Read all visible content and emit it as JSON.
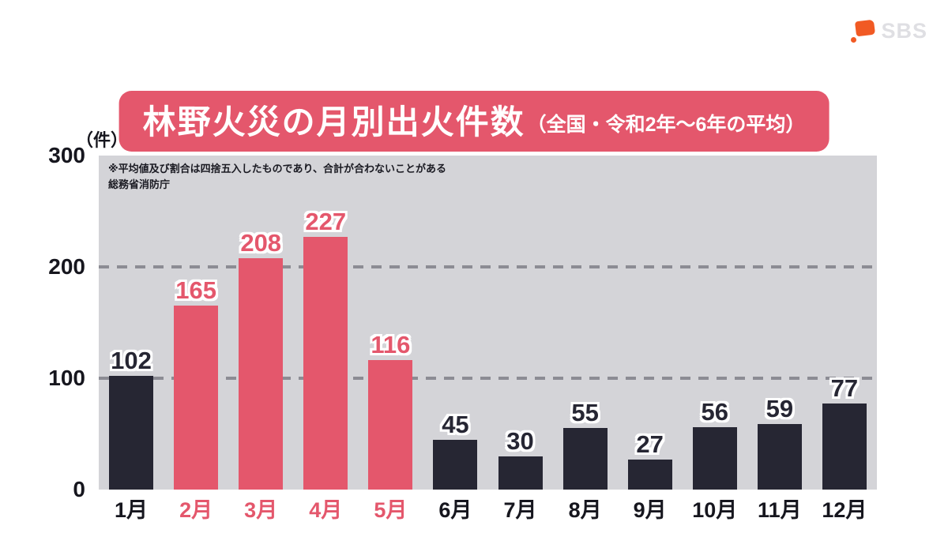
{
  "logo": {
    "text": "SBS"
  },
  "header": {
    "title": "林野火災の月別出火件数",
    "subtitle": "（全国・令和2年～6年の平均）"
  },
  "chart_data": {
    "type": "bar",
    "title": "林野火災の月別出火件数（全国・令和2年～6年の平均）",
    "unit_label": "（件）",
    "categories": [
      "1月",
      "2月",
      "3月",
      "4月",
      "5月",
      "6月",
      "7月",
      "8月",
      "9月",
      "10月",
      "11月",
      "12月"
    ],
    "values": [
      102,
      165,
      208,
      227,
      116,
      45,
      30,
      55,
      27,
      56,
      59,
      77
    ],
    "highlighted": [
      false,
      true,
      true,
      true,
      true,
      false,
      false,
      false,
      false,
      false,
      false,
      false
    ],
    "ylim": [
      0,
      300
    ],
    "yticks": [
      0,
      100,
      200,
      300
    ],
    "grid": "dashed-horizontal",
    "note_line1": "※平均値及び割合は四捨五入したものであり、合計が合わないことがある",
    "note_line2": "総務省消防庁",
    "colors": {
      "bar_default": "#262633",
      "bar_highlight": "#e4576c",
      "banner_bg": "#e4576c",
      "plot_bg": "#d4d4d8",
      "gridline": "#8c8c94",
      "logo_orange": "#f15a24"
    }
  }
}
